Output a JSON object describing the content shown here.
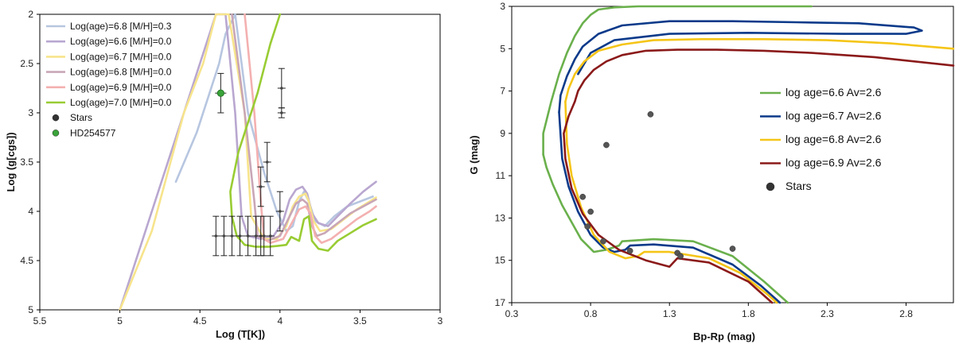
{
  "chart_data": [
    {
      "type": "line",
      "xlabel": "Log (T[K])",
      "ylabel": "Log (g[cgs])",
      "xlim": [
        5.5,
        3.0
      ],
      "ylim": [
        5.0,
        2.0
      ],
      "xticks": [
        "5.5",
        "5",
        "4.5",
        "4",
        "3.5",
        "3"
      ],
      "yticks": [
        "2",
        "2.5",
        "3",
        "3.5",
        "4",
        "4.5",
        "5"
      ],
      "legend_position": "top-left",
      "series": [
        {
          "name": "Log(age)=6.8 [M/H]=0.3",
          "color": "#b7c6e0",
          "x": [
            4.65,
            4.52,
            4.44,
            4.38,
            4.34,
            4.28,
            4.2,
            4.1,
            4.02,
            3.96,
            3.92,
            3.88,
            3.85,
            3.82,
            3.78,
            3.72,
            3.66,
            3.58,
            3.5,
            3.42
          ],
          "y": [
            3.7,
            3.2,
            2.8,
            2.5,
            2.2,
            2.0,
            3.0,
            3.6,
            4.0,
            4.2,
            4.15,
            3.9,
            3.8,
            3.9,
            4.1,
            4.15,
            4.05,
            3.95,
            3.9,
            3.85
          ]
        },
        {
          "name": "Log(age)=6.6 [M/H]=0.0",
          "color": "#b9a7d0",
          "x": [
            5.0,
            4.8,
            4.6,
            4.48,
            4.4,
            4.34,
            4.28,
            4.24,
            4.2,
            4.12,
            4.04,
            3.98,
            3.94,
            3.9,
            3.86,
            3.83,
            3.8,
            3.76,
            3.7,
            3.64,
            3.56,
            3.48,
            3.4
          ],
          "y": [
            5.0,
            4.0,
            3.0,
            2.4,
            2.0,
            2.0,
            3.0,
            4.05,
            4.25,
            4.28,
            4.25,
            4.1,
            3.88,
            3.78,
            3.75,
            3.82,
            4.02,
            4.12,
            4.15,
            4.05,
            3.92,
            3.8,
            3.7
          ]
        },
        {
          "name": "Log(age)=6.7 [M/H]=0.0",
          "color": "#f7e48c",
          "x": [
            5.0,
            4.8,
            4.6,
            4.48,
            4.4,
            4.32,
            4.22,
            4.18,
            4.1,
            4.02,
            3.96,
            3.92,
            3.88,
            3.84,
            3.82,
            3.79,
            3.75,
            3.68,
            3.6,
            3.52,
            3.44,
            3.4
          ],
          "y": [
            5.0,
            4.2,
            3.0,
            2.5,
            2.0,
            2.0,
            3.0,
            4.05,
            4.28,
            4.28,
            4.15,
            3.95,
            3.85,
            3.82,
            3.9,
            4.1,
            4.2,
            4.18,
            4.08,
            3.98,
            3.9,
            3.86
          ]
        },
        {
          "name": "Log(age)=6.8 [M/H]=0.0",
          "color": "#c9a6b6",
          "x": [
            4.3,
            4.22,
            4.16,
            4.14,
            4.08,
            4.0,
            3.94,
            3.9,
            3.86,
            3.83,
            3.8,
            3.77,
            3.72,
            3.64,
            3.56,
            3.48,
            3.4
          ],
          "y": [
            2.0,
            3.0,
            3.9,
            4.25,
            4.3,
            4.25,
            4.05,
            3.92,
            3.88,
            3.92,
            4.15,
            4.25,
            4.22,
            4.12,
            4.02,
            3.95,
            3.88
          ]
        },
        {
          "name": "Log(age)=6.9 [M/H]=0.0",
          "color": "#f4b0b0",
          "x": [
            4.22,
            4.16,
            4.12,
            4.1,
            4.06,
            3.98,
            3.92,
            3.88,
            3.84,
            3.81,
            3.78,
            3.74,
            3.68,
            3.6,
            3.52,
            3.44,
            3.4
          ],
          "y": [
            2.0,
            3.0,
            3.9,
            4.28,
            4.32,
            4.28,
            4.1,
            3.98,
            3.95,
            4.02,
            4.25,
            4.32,
            4.28,
            4.18,
            4.08,
            4.0,
            3.95
          ]
        },
        {
          "name": "Log(age)=7.0 [M/H]=0.0",
          "color": "#99cc33",
          "x": [
            4.0,
            4.02,
            4.06,
            4.14,
            4.26,
            4.31,
            4.3,
            4.27,
            4.22,
            4.15,
            4.07,
            4.01,
            3.96,
            3.93,
            3.88,
            3.85,
            3.82,
            3.8,
            3.76,
            3.7,
            3.64,
            3.56,
            3.48,
            3.4
          ],
          "y": [
            2.0,
            2.1,
            2.3,
            2.8,
            3.4,
            3.8,
            4.05,
            4.25,
            4.34,
            4.36,
            4.36,
            4.35,
            4.34,
            4.26,
            4.3,
            4.08,
            4.05,
            4.3,
            4.38,
            4.4,
            4.3,
            4.22,
            4.14,
            4.08
          ]
        }
      ],
      "points": {
        "name": "Stars",
        "color": "#444444",
        "x": [
          4.4,
          4.35,
          4.3,
          4.25,
          4.2,
          4.15,
          4.12,
          4.1,
          4.06,
          4.0,
          3.99,
          3.99,
          4.12,
          4.08
        ],
        "y": [
          4.25,
          4.25,
          4.25,
          4.25,
          4.25,
          4.25,
          4.25,
          4.25,
          4.25,
          4.0,
          3.0,
          2.75,
          3.75,
          3.5
        ],
        "yerr": [
          0.2,
          0.2,
          0.2,
          0.2,
          0.2,
          0.2,
          0.2,
          0.2,
          0.2,
          0.2,
          0.05,
          0.2,
          0.2,
          0.2
        ]
      },
      "highlight": {
        "name": "HD254577",
        "color": "#39a339",
        "x": 4.37,
        "y": 2.8,
        "yerr": 0.2
      }
    },
    {
      "type": "line",
      "xlabel": "Bp-Rp (mag)",
      "ylabel": "G (mag)",
      "xlim": [
        0.3,
        3.1
      ],
      "ylim": [
        17,
        3
      ],
      "xticks": [
        "0.3",
        "0.8",
        "1.3",
        "1.8",
        "2.3",
        "2.8"
      ],
      "yticks": [
        "3",
        "5",
        "7",
        "9",
        "11",
        "13",
        "15",
        "17"
      ],
      "legend_position": "right",
      "series": [
        {
          "name": "log age=6.6 Av=2.6",
          "color": "#6ab04c",
          "x": [
            0.5,
            0.5,
            0.55,
            0.6,
            0.65,
            0.7,
            0.75,
            0.8,
            0.85,
            0.95,
            1.1,
            1.4,
            1.8,
            2.2
          ],
          "y": [
            10.0,
            9.0,
            7.5,
            6.2,
            5.2,
            4.4,
            3.8,
            3.4,
            3.15,
            3.05,
            3.0,
            3.0,
            3.0,
            3.0
          ]
        },
        {
          "name": "log age=6.7 Av=2.6",
          "color": "#0b3a8a",
          "x": [
            0.6,
            0.61,
            0.65,
            0.7,
            0.75,
            0.85,
            1.0,
            1.3,
            1.7,
            2.1,
            2.5,
            2.85,
            2.9,
            2.8,
            2.4,
            1.8,
            1.3,
            0.95,
            0.8,
            0.72
          ],
          "y": [
            8.0,
            7.2,
            6.3,
            5.5,
            4.9,
            4.3,
            3.9,
            3.7,
            3.7,
            3.75,
            3.8,
            4.0,
            4.15,
            4.3,
            4.3,
            4.25,
            4.3,
            4.6,
            5.2,
            6.2
          ]
        },
        {
          "name": "log age=6.8 Av=2.6",
          "color": "#f5c518",
          "x": [
            0.64,
            0.66,
            0.7,
            0.76,
            0.85,
            1.0,
            1.2,
            1.5,
            1.9,
            2.3,
            2.7,
            3.1
          ],
          "y": [
            7.5,
            6.9,
            6.2,
            5.6,
            5.1,
            4.8,
            4.6,
            4.55,
            4.55,
            4.6,
            4.75,
            5.0
          ]
        },
        {
          "name": "log age=6.9 Av=2.6",
          "color": "#8b1a1a",
          "x": [
            0.7,
            0.72,
            0.76,
            0.82,
            0.9,
            1.0,
            1.15,
            1.35,
            1.6,
            1.9,
            2.2,
            2.6,
            3.1
          ],
          "y": [
            7.5,
            7.0,
            6.5,
            6.0,
            5.6,
            5.3,
            5.1,
            5.05,
            5.05,
            5.1,
            5.2,
            5.4,
            5.8
          ]
        },
        {
          "name": "lower log age=6.6 Av=2.6",
          "color": "#6ab04c",
          "legend": false,
          "x": [
            0.5,
            0.52,
            0.56,
            0.62,
            0.68,
            0.74,
            0.82,
            0.9,
            0.98,
            1.0,
            1.2,
            1.45,
            1.7,
            1.9,
            2.05
          ],
          "y": [
            10.0,
            10.6,
            11.4,
            12.4,
            13.2,
            14.0,
            14.6,
            14.5,
            14.3,
            14.1,
            14.0,
            14.1,
            14.8,
            16.0,
            17.0
          ]
        },
        {
          "name": "lower log age=6.7 Av=2.6",
          "color": "#0b3a8a",
          "legend": false,
          "x": [
            0.6,
            0.62,
            0.66,
            0.72,
            0.8,
            0.88,
            0.95,
            1.02,
            1.05,
            1.2,
            1.45,
            1.7,
            1.88,
            2.0
          ],
          "y": [
            8.0,
            10.2,
            11.5,
            12.7,
            13.8,
            14.4,
            14.6,
            14.5,
            14.3,
            14.25,
            14.4,
            15.2,
            16.2,
            17.0
          ]
        },
        {
          "name": "lower log age=6.8 Av=2.6",
          "color": "#f5c518",
          "legend": false,
          "x": [
            0.64,
            0.65,
            0.68,
            0.74,
            0.82,
            0.92,
            1.02,
            1.1,
            1.14,
            1.3,
            1.55,
            1.75,
            1.92,
            1.98
          ],
          "y": [
            7.5,
            9.5,
            11.0,
            12.5,
            13.8,
            14.6,
            14.9,
            14.8,
            14.6,
            14.6,
            14.9,
            15.6,
            16.6,
            17.0
          ]
        },
        {
          "name": "lower log age=6.9 Av=2.6",
          "color": "#8b1a1a",
          "legend": false,
          "x": [
            0.7,
            0.66,
            0.63,
            0.64,
            0.68,
            0.75,
            0.85,
            0.98,
            1.15,
            1.3,
            1.35,
            1.55,
            1.8,
            1.95
          ],
          "y": [
            7.5,
            8.2,
            9.0,
            10.2,
            11.6,
            12.8,
            13.8,
            14.5,
            15.0,
            15.3,
            14.9,
            15.1,
            16.0,
            17.0
          ]
        }
      ],
      "points": {
        "name": "Stars",
        "color": "#555555",
        "x": [
          1.18,
          0.9,
          0.75,
          0.8,
          0.78,
          0.88,
          1.05,
          1.35,
          1.7,
          1.37
        ],
        "y": [
          8.1,
          9.55,
          12.0,
          12.7,
          13.4,
          14.1,
          14.55,
          14.65,
          14.45,
          14.8
        ]
      }
    }
  ]
}
